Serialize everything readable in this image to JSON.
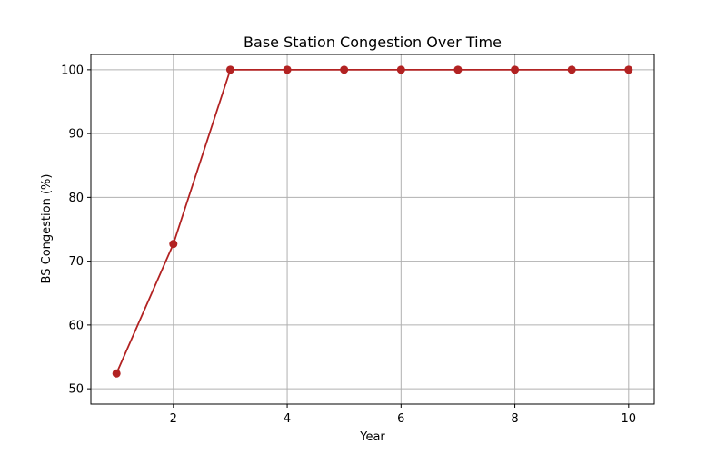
{
  "chart_data": {
    "type": "line",
    "title": "Base Station Congestion Over Time",
    "xlabel": "Year",
    "ylabel": "BS Congestion (%)",
    "xlim": [
      0.55,
      10.45
    ],
    "ylim": [
      47.6,
      102.4
    ],
    "xticks": [
      2,
      4,
      6,
      8,
      10
    ],
    "yticks": [
      50,
      60,
      70,
      80,
      90,
      100
    ],
    "grid": true,
    "series": [
      {
        "color": "#b22222",
        "marker": "circle",
        "x": [
          1,
          2,
          3,
          4,
          5,
          6,
          7,
          8,
          9,
          10
        ],
        "y": [
          52.4,
          72.7,
          100,
          100,
          100,
          100,
          100,
          100,
          100,
          100
        ]
      }
    ]
  }
}
